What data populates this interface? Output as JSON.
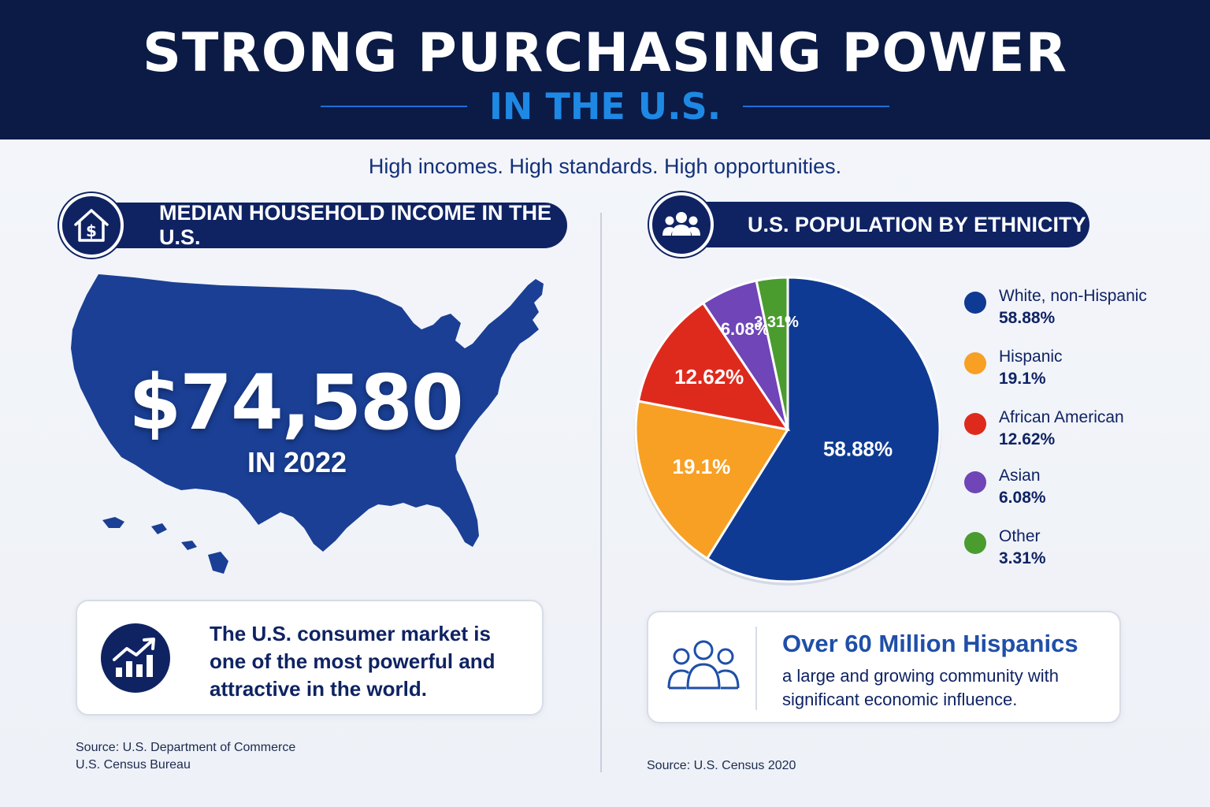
{
  "header": {
    "title": "STRONG PURCHASING POWER",
    "subtitle": "IN THE U.S."
  },
  "tagline": "High incomes. High standards. High opportunities.",
  "left_panel": {
    "heading": "MEDIAN HOUSEHOLD INCOME IN THE U.S.",
    "heading_icon": "house-dollar-icon",
    "income_value": "$74,580",
    "income_year": "IN 2022",
    "card_icon": "growth-chart-icon",
    "card_text": "The U.S. consumer market is one of the most powerful and attractive in the world.",
    "source_line1": "Source: U.S. Department of Commerce",
    "source_line2": "U.S. Census Bureau"
  },
  "right_panel": {
    "heading": "U.S. POPULATION BY ETHNICITY",
    "heading_icon": "people-group-icon",
    "card_icon": "people-outline-icon",
    "card_title": "Over 60 Million Hispanics",
    "card_text": "a large and growing community with significant economic influence.",
    "source": "Source: U.S. Census 2020"
  },
  "colors": {
    "navy": "#0b1b45",
    "accent_blue": "#1e88e5",
    "map_blue": "#1a3f95"
  },
  "chart_data": {
    "type": "pie",
    "title": "U.S. POPULATION BY ETHNICITY",
    "legend_position": "right",
    "slices": [
      {
        "name": "White, non-Hispanic",
        "value": 58.88,
        "label": "58.88%",
        "color": "#0f3a93"
      },
      {
        "name": "Hispanic",
        "value": 19.1,
        "label": "19.1%",
        "color": "#f7a024"
      },
      {
        "name": "African American",
        "value": 12.62,
        "label": "12.62%",
        "color": "#de2a1d"
      },
      {
        "name": "Asian",
        "value": 6.08,
        "label": "6.08%",
        "color": "#6f45b8"
      },
      {
        "name": "Other",
        "value": 3.31,
        "label": "3.31%",
        "color": "#4a9c2e"
      }
    ]
  }
}
